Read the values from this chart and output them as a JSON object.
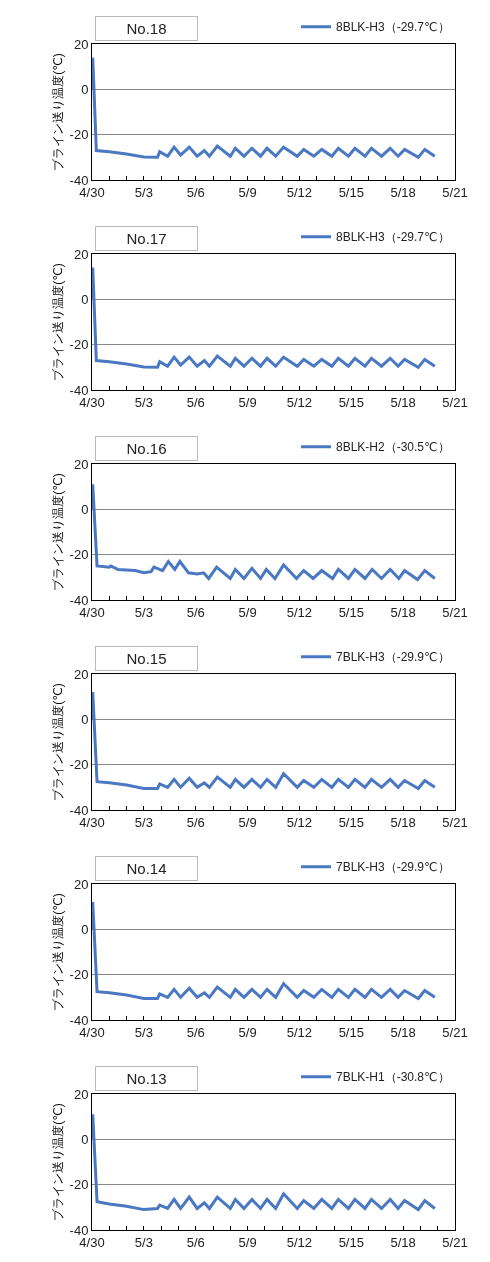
{
  "chart_data": [
    {
      "type": "line",
      "title": "No.18",
      "ylabel": "ブライン送り温度(℃)",
      "xlim": [
        "--04-30",
        "--05-21"
      ],
      "ylim": [
        -40,
        20
      ],
      "yticks": [
        -40,
        -20,
        0,
        20
      ],
      "grid": "y",
      "legend": "top right",
      "marker": "none",
      "line_style": "solid",
      "xticks": [
        {
          "value": "--04-30",
          "label": "4/30"
        },
        {
          "value": "--05-01",
          "label": null
        },
        {
          "value": "--05-02",
          "label": null
        },
        {
          "value": "--05-03",
          "label": "5/3"
        },
        {
          "value": "--05-04",
          "label": null
        },
        {
          "value": "--05-05",
          "label": null
        },
        {
          "value": "--05-06",
          "label": "5/6"
        },
        {
          "value": "--05-07",
          "label": null
        },
        {
          "value": "--05-08",
          "label": null
        },
        {
          "value": "--05-09",
          "label": "5/9"
        },
        {
          "value": "--05-10",
          "label": null
        },
        {
          "value": "--05-11",
          "label": null
        },
        {
          "value": "--05-12",
          "label": "5/12"
        },
        {
          "value": "--05-13",
          "label": null
        },
        {
          "value": "--05-14",
          "label": null
        },
        {
          "value": "--05-15",
          "label": "5/15"
        },
        {
          "value": "--05-16",
          "label": null
        },
        {
          "value": "--05-17",
          "label": null
        },
        {
          "value": "--05-18",
          "label": "5/18"
        },
        {
          "value": "--05-19",
          "label": null
        },
        {
          "value": "--05-20",
          "label": null
        },
        {
          "value": "--05-21",
          "label": "5/21"
        }
      ],
      "x": [
        "--04-30T00:00",
        "--04-30T01:00",
        "--04-30T06:00",
        "--05-01T00:00",
        "--05-02T00:00",
        "--05-03T00:00",
        "--05-03T19:00",
        "--05-03T22:00",
        "--05-04T09:00",
        "--05-04T18:00",
        "--05-05T03:00",
        "--05-05T15:00",
        "--05-06T02:00",
        "--05-06T12:00",
        "--05-06T19:00",
        "--05-07T06:00",
        "--05-08T00:00",
        "--05-08T07:00",
        "--05-08T19:00",
        "--05-09T06:00",
        "--05-09T18:00",
        "--05-10T03:00",
        "--05-10T15:00",
        "--05-11T02:00",
        "--05-11T21:00",
        "--05-12T06:00",
        "--05-12T20:00",
        "--05-13T07:00",
        "--05-13T21:00",
        "--05-14T06:00",
        "--05-14T20:00",
        "--05-15T05:00",
        "--05-15T19:00",
        "--05-16T04:00",
        "--05-16T18:00",
        "--05-17T06:00",
        "--05-17T17:00",
        "--05-18T02:00",
        "--05-18T21:00",
        "--05-19T06:00",
        "--05-19T20:00"
      ],
      "series": [
        {
          "name": "8BLK-H3（-29.7℃）",
          "color": "#4a78c2",
          "values": [
            0,
            14,
            -27,
            -27.5,
            -28.5,
            -29.8,
            -30,
            -27.5,
            -29.5,
            -25.5,
            -29,
            -25.5,
            -29.5,
            -27,
            -29.5,
            -25,
            -29.5,
            -26,
            -29.5,
            -26,
            -29.5,
            -26,
            -29.5,
            -25.5,
            -29.5,
            -26.5,
            -29.5,
            -26.5,
            -29.5,
            -26,
            -29.5,
            -26,
            -29.5,
            -26,
            -29.5,
            -26,
            -29.5,
            -26.5,
            -30,
            -26.5,
            -29.5
          ]
        }
      ]
    },
    {
      "type": "line",
      "title": "No.17",
      "ylabel": "ブライン送り温度(℃)",
      "xlim": [
        "--04-30",
        "--05-21"
      ],
      "ylim": [
        -40,
        20
      ],
      "yticks": [
        -40,
        -20,
        0,
        20
      ],
      "grid": "y",
      "legend": "top right",
      "marker": "none",
      "line_style": "solid",
      "xticks": [
        {
          "value": "--04-30",
          "label": "4/30"
        },
        {
          "value": "--05-01",
          "label": null
        },
        {
          "value": "--05-02",
          "label": null
        },
        {
          "value": "--05-03",
          "label": "5/3"
        },
        {
          "value": "--05-04",
          "label": null
        },
        {
          "value": "--05-05",
          "label": null
        },
        {
          "value": "--05-06",
          "label": "5/6"
        },
        {
          "value": "--05-07",
          "label": null
        },
        {
          "value": "--05-08",
          "label": null
        },
        {
          "value": "--05-09",
          "label": "5/9"
        },
        {
          "value": "--05-10",
          "label": null
        },
        {
          "value": "--05-11",
          "label": null
        },
        {
          "value": "--05-12",
          "label": "5/12"
        },
        {
          "value": "--05-13",
          "label": null
        },
        {
          "value": "--05-14",
          "label": null
        },
        {
          "value": "--05-15",
          "label": "5/15"
        },
        {
          "value": "--05-16",
          "label": null
        },
        {
          "value": "--05-17",
          "label": null
        },
        {
          "value": "--05-18",
          "label": "5/18"
        },
        {
          "value": "--05-19",
          "label": null
        },
        {
          "value": "--05-20",
          "label": null
        },
        {
          "value": "--05-21",
          "label": "5/21"
        }
      ],
      "x": [
        "--04-30T00:00",
        "--04-30T01:00",
        "--04-30T06:00",
        "--05-01T00:00",
        "--05-02T00:00",
        "--05-03T00:00",
        "--05-03T19:00",
        "--05-03T22:00",
        "--05-04T09:00",
        "--05-04T18:00",
        "--05-05T03:00",
        "--05-05T15:00",
        "--05-06T02:00",
        "--05-06T12:00",
        "--05-06T19:00",
        "--05-07T06:00",
        "--05-08T00:00",
        "--05-08T07:00",
        "--05-08T19:00",
        "--05-09T06:00",
        "--05-09T18:00",
        "--05-10T03:00",
        "--05-10T15:00",
        "--05-11T02:00",
        "--05-11T21:00",
        "--05-12T06:00",
        "--05-12T20:00",
        "--05-13T07:00",
        "--05-13T21:00",
        "--05-14T06:00",
        "--05-14T20:00",
        "--05-15T05:00",
        "--05-15T19:00",
        "--05-16T04:00",
        "--05-16T18:00",
        "--05-17T06:00",
        "--05-17T17:00",
        "--05-18T02:00",
        "--05-18T21:00",
        "--05-19T06:00",
        "--05-19T20:00"
      ],
      "series": [
        {
          "name": "8BLK-H3（-29.7℃）",
          "color": "#4a78c2",
          "values": [
            0,
            14,
            -27,
            -27.5,
            -28.5,
            -29.8,
            -30,
            -27.5,
            -29.5,
            -25.5,
            -29,
            -25.5,
            -29.5,
            -27,
            -29.5,
            -25,
            -29.5,
            -26,
            -29.5,
            -26,
            -29.5,
            -26,
            -29.5,
            -25.5,
            -29.5,
            -26.5,
            -29.5,
            -26.5,
            -29.5,
            -26,
            -29.5,
            -26,
            -29.5,
            -26,
            -29.5,
            -26,
            -29.5,
            -26.5,
            -30,
            -26.5,
            -29.5
          ]
        }
      ]
    },
    {
      "type": "line",
      "title": "No.16",
      "ylabel": "ブライン送り温度(℃)",
      "xlim": [
        "--04-30",
        "--05-21"
      ],
      "ylim": [
        -40,
        20
      ],
      "yticks": [
        -40,
        -20,
        0,
        20
      ],
      "grid": "y",
      "legend": "top right",
      "marker": "none",
      "line_style": "solid",
      "xticks": [
        {
          "value": "--04-30",
          "label": "4/30"
        },
        {
          "value": "--05-01",
          "label": null
        },
        {
          "value": "--05-02",
          "label": null
        },
        {
          "value": "--05-03",
          "label": "5/3"
        },
        {
          "value": "--05-04",
          "label": null
        },
        {
          "value": "--05-05",
          "label": null
        },
        {
          "value": "--05-06",
          "label": "5/6"
        },
        {
          "value": "--05-07",
          "label": null
        },
        {
          "value": "--05-08",
          "label": null
        },
        {
          "value": "--05-09",
          "label": "5/9"
        },
        {
          "value": "--05-10",
          "label": null
        },
        {
          "value": "--05-11",
          "label": null
        },
        {
          "value": "--05-12",
          "label": "5/12"
        },
        {
          "value": "--05-13",
          "label": null
        },
        {
          "value": "--05-14",
          "label": null
        },
        {
          "value": "--05-15",
          "label": "5/15"
        },
        {
          "value": "--05-16",
          "label": null
        },
        {
          "value": "--05-17",
          "label": null
        },
        {
          "value": "--05-18",
          "label": "5/18"
        },
        {
          "value": "--05-19",
          "label": null
        },
        {
          "value": "--05-20",
          "label": null
        },
        {
          "value": "--05-21",
          "label": "5/21"
        }
      ],
      "x": [
        "--04-30T00:00",
        "--04-30T01:00",
        "--04-30T07:00",
        "--05-01T00:00",
        "--05-01T02:00",
        "--05-01T12:00",
        "--05-02T12:00",
        "--05-03T00:00",
        "--05-03T10:00",
        "--05-03T14:00",
        "--05-04T02:00",
        "--05-04T10:00",
        "--05-04T19:00",
        "--05-05T02:00",
        "--05-05T14:00",
        "--05-06T02:00",
        "--05-06T11:00",
        "--05-06T18:00",
        "--05-07T05:00",
        "--05-08T00:00",
        "--05-08T07:00",
        "--05-08T19:00",
        "--05-09T06:00",
        "--05-09T18:00",
        "--05-10T02:00",
        "--05-10T14:00",
        "--05-11T02:00",
        "--05-11T20:00",
        "--05-12T06:00",
        "--05-12T19:00",
        "--05-13T07:00",
        "--05-13T22:00",
        "--05-14T06:00",
        "--05-14T20:00",
        "--05-15T05:00",
        "--05-15T19:00",
        "--05-16T05:00",
        "--05-16T18:00",
        "--05-17T06:00",
        "--05-17T18:00",
        "--05-18T02:00",
        "--05-18T20:00",
        "--05-19T06:00",
        "--05-19T20:00"
      ],
      "series": [
        {
          "name": "8BLK-H2（-30.5℃）",
          "color": "#4a78c2",
          "values": [
            0,
            11,
            -25,
            -25.5,
            -25,
            -26.5,
            -27,
            -28,
            -27.5,
            -25.5,
            -27,
            -23,
            -26.5,
            -23,
            -28,
            -28.5,
            -28,
            -30.5,
            -25.5,
            -30.5,
            -26.5,
            -30.5,
            -26,
            -30.5,
            -26.5,
            -30.5,
            -24.5,
            -30.5,
            -27,
            -30.5,
            -27,
            -30.5,
            -26.5,
            -30.5,
            -26.5,
            -30.5,
            -26.5,
            -30.5,
            -26.5,
            -30.5,
            -27,
            -31,
            -27,
            -30.5
          ]
        }
      ]
    },
    {
      "type": "line",
      "title": "No.15",
      "ylabel": "ブライン送り温度(℃)",
      "xlim": [
        "--04-30",
        "--05-21"
      ],
      "ylim": [
        -40,
        20
      ],
      "yticks": [
        -40,
        -20,
        0,
        20
      ],
      "grid": "y",
      "legend": "top right",
      "marker": "none",
      "line_style": "solid",
      "xticks": [
        {
          "value": "--04-30",
          "label": "4/30"
        },
        {
          "value": "--05-01",
          "label": null
        },
        {
          "value": "--05-02",
          "label": null
        },
        {
          "value": "--05-03",
          "label": "5/3"
        },
        {
          "value": "--05-04",
          "label": null
        },
        {
          "value": "--05-05",
          "label": null
        },
        {
          "value": "--05-06",
          "label": "5/6"
        },
        {
          "value": "--05-07",
          "label": null
        },
        {
          "value": "--05-08",
          "label": null
        },
        {
          "value": "--05-09",
          "label": "5/9"
        },
        {
          "value": "--05-10",
          "label": null
        },
        {
          "value": "--05-11",
          "label": null
        },
        {
          "value": "--05-12",
          "label": "5/12"
        },
        {
          "value": "--05-13",
          "label": null
        },
        {
          "value": "--05-14",
          "label": null
        },
        {
          "value": "--05-15",
          "label": "5/15"
        },
        {
          "value": "--05-16",
          "label": null
        },
        {
          "value": "--05-17",
          "label": null
        },
        {
          "value": "--05-18",
          "label": "5/18"
        },
        {
          "value": "--05-19",
          "label": null
        },
        {
          "value": "--05-20",
          "label": null
        },
        {
          "value": "--05-21",
          "label": "5/21"
        }
      ],
      "x": [
        "--04-30T00:00",
        "--04-30T01:00",
        "--04-30T07:00",
        "--05-01T00:00",
        "--05-02T00:00",
        "--05-03T00:00",
        "--05-03T19:00",
        "--05-03T22:00",
        "--05-04T09:00",
        "--05-04T18:00",
        "--05-05T03:00",
        "--05-05T15:00",
        "--05-06T02:00",
        "--05-06T12:00",
        "--05-06T19:00",
        "--05-07T06:00",
        "--05-08T00:00",
        "--05-08T07:00",
        "--05-08T19:00",
        "--05-09T06:00",
        "--05-09T18:00",
        "--05-10T03:00",
        "--05-10T15:00",
        "--05-11T02:00",
        "--05-11T21:00",
        "--05-12T06:00",
        "--05-12T20:00",
        "--05-13T07:00",
        "--05-13T21:00",
        "--05-14T06:00",
        "--05-14T20:00",
        "--05-15T05:00",
        "--05-15T19:00",
        "--05-16T04:00",
        "--05-16T18:00",
        "--05-17T06:00",
        "--05-17T17:00",
        "--05-18T02:00",
        "--05-18T21:00",
        "--05-19T06:00",
        "--05-19T20:00"
      ],
      "series": [
        {
          "name": "7BLK-H3（-29.9℃）",
          "color": "#4a78c2",
          "values": [
            0,
            12,
            -27.5,
            -28,
            -29,
            -30.5,
            -30.5,
            -28.5,
            -30,
            -26.5,
            -30,
            -26,
            -30,
            -28,
            -30,
            -25.5,
            -30,
            -26.5,
            -30,
            -26.5,
            -30,
            -26.5,
            -30,
            -24,
            -30,
            -27,
            -30,
            -26.5,
            -30,
            -26.5,
            -30,
            -26.5,
            -30,
            -26.5,
            -30,
            -26.5,
            -30,
            -27,
            -30.5,
            -27,
            -30
          ]
        }
      ]
    },
    {
      "type": "line",
      "title": "No.14",
      "ylabel": "ブライン送り温度(℃)",
      "xlim": [
        "--04-30",
        "--05-21"
      ],
      "ylim": [
        -40,
        20
      ],
      "yticks": [
        -40,
        -20,
        0,
        20
      ],
      "grid": "y",
      "legend": "top right",
      "marker": "none",
      "line_style": "solid",
      "xticks": [
        {
          "value": "--04-30",
          "label": "4/30"
        },
        {
          "value": "--05-01",
          "label": null
        },
        {
          "value": "--05-02",
          "label": null
        },
        {
          "value": "--05-03",
          "label": "5/3"
        },
        {
          "value": "--05-04",
          "label": null
        },
        {
          "value": "--05-05",
          "label": null
        },
        {
          "value": "--05-06",
          "label": "5/6"
        },
        {
          "value": "--05-07",
          "label": null
        },
        {
          "value": "--05-08",
          "label": null
        },
        {
          "value": "--05-09",
          "label": "5/9"
        },
        {
          "value": "--05-10",
          "label": null
        },
        {
          "value": "--05-11",
          "label": null
        },
        {
          "value": "--05-12",
          "label": "5/12"
        },
        {
          "value": "--05-13",
          "label": null
        },
        {
          "value": "--05-14",
          "label": null
        },
        {
          "value": "--05-15",
          "label": "5/15"
        },
        {
          "value": "--05-16",
          "label": null
        },
        {
          "value": "--05-17",
          "label": null
        },
        {
          "value": "--05-18",
          "label": "5/18"
        },
        {
          "value": "--05-19",
          "label": null
        },
        {
          "value": "--05-20",
          "label": null
        },
        {
          "value": "--05-21",
          "label": "5/21"
        }
      ],
      "x": [
        "--04-30T00:00",
        "--04-30T01:00",
        "--04-30T07:00",
        "--05-01T00:00",
        "--05-02T00:00",
        "--05-03T00:00",
        "--05-03T19:00",
        "--05-03T22:00",
        "--05-04T09:00",
        "--05-04T18:00",
        "--05-05T03:00",
        "--05-05T15:00",
        "--05-06T02:00",
        "--05-06T12:00",
        "--05-06T19:00",
        "--05-07T06:00",
        "--05-08T00:00",
        "--05-08T07:00",
        "--05-08T19:00",
        "--05-09T06:00",
        "--05-09T18:00",
        "--05-10T03:00",
        "--05-10T15:00",
        "--05-11T02:00",
        "--05-11T21:00",
        "--05-12T06:00",
        "--05-12T20:00",
        "--05-13T07:00",
        "--05-13T21:00",
        "--05-14T06:00",
        "--05-14T20:00",
        "--05-15T05:00",
        "--05-15T19:00",
        "--05-16T04:00",
        "--05-16T18:00",
        "--05-17T06:00",
        "--05-17T17:00",
        "--05-18T02:00",
        "--05-18T21:00",
        "--05-19T06:00",
        "--05-19T20:00"
      ],
      "series": [
        {
          "name": "7BLK-H3（-29.9℃）",
          "color": "#4a78c2",
          "values": [
            0,
            12,
            -27.5,
            -28,
            -29,
            -30.5,
            -30.5,
            -28.5,
            -30,
            -26.5,
            -30,
            -26,
            -30,
            -28,
            -30,
            -25.5,
            -30,
            -26.5,
            -30,
            -26.5,
            -30,
            -26.5,
            -30,
            -24,
            -30,
            -27,
            -30,
            -26.5,
            -30,
            -26.5,
            -30,
            -26.5,
            -30,
            -26.5,
            -30,
            -26.5,
            -30,
            -27,
            -30.5,
            -27,
            -30
          ]
        }
      ]
    },
    {
      "type": "line",
      "title": "No.13",
      "ylabel": "ブライン送り温度(℃)",
      "xlim": [
        "--04-30",
        "--05-21"
      ],
      "ylim": [
        -40,
        20
      ],
      "yticks": [
        -40,
        -20,
        0,
        20
      ],
      "grid": "y",
      "legend": "top right",
      "marker": "none",
      "line_style": "solid",
      "xticks": [
        {
          "value": "--04-30",
          "label": "4/30"
        },
        {
          "value": "--05-01",
          "label": null
        },
        {
          "value": "--05-02",
          "label": null
        },
        {
          "value": "--05-03",
          "label": "5/3"
        },
        {
          "value": "--05-04",
          "label": null
        },
        {
          "value": "--05-05",
          "label": null
        },
        {
          "value": "--05-06",
          "label": "5/6"
        },
        {
          "value": "--05-07",
          "label": null
        },
        {
          "value": "--05-08",
          "label": null
        },
        {
          "value": "--05-09",
          "label": "5/9"
        },
        {
          "value": "--05-10",
          "label": null
        },
        {
          "value": "--05-11",
          "label": null
        },
        {
          "value": "--05-12",
          "label": "5/12"
        },
        {
          "value": "--05-13",
          "label": null
        },
        {
          "value": "--05-14",
          "label": null
        },
        {
          "value": "--05-15",
          "label": "5/15"
        },
        {
          "value": "--05-16",
          "label": null
        },
        {
          "value": "--05-17",
          "label": null
        },
        {
          "value": "--05-18",
          "label": "5/18"
        },
        {
          "value": "--05-19",
          "label": null
        },
        {
          "value": "--05-20",
          "label": null
        },
        {
          "value": "--05-21",
          "label": "5/21"
        }
      ],
      "x": [
        "--04-30T00:00",
        "--04-30T01:00",
        "--04-30T07:00",
        "--05-01T00:00",
        "--05-02T00:00",
        "--05-03T00:00",
        "--05-03T19:00",
        "--05-03T22:00",
        "--05-04T09:00",
        "--05-04T18:00",
        "--05-05T03:00",
        "--05-05T15:00",
        "--05-06T02:00",
        "--05-06T12:00",
        "--05-06T19:00",
        "--05-07T06:00",
        "--05-08T00:00",
        "--05-08T07:00",
        "--05-08T19:00",
        "--05-09T06:00",
        "--05-09T18:00",
        "--05-10T03:00",
        "--05-10T15:00",
        "--05-11T02:00",
        "--05-11T21:00",
        "--05-12T06:00",
        "--05-12T20:00",
        "--05-13T07:00",
        "--05-13T21:00",
        "--05-14T06:00",
        "--05-14T20:00",
        "--05-15T05:00",
        "--05-15T19:00",
        "--05-16T04:00",
        "--05-16T18:00",
        "--05-17T06:00",
        "--05-17T17:00",
        "--05-18T02:00",
        "--05-18T21:00",
        "--05-19T06:00",
        "--05-19T20:00"
      ],
      "series": [
        {
          "name": "7BLK-H1（-30.8℃）",
          "color": "#4a78c2",
          "values": [
            0,
            11,
            -27.5,
            -28.5,
            -29.5,
            -31,
            -30.5,
            -29,
            -30.5,
            -26.5,
            -30.5,
            -25.5,
            -30.5,
            -28,
            -30.5,
            -25.5,
            -30.5,
            -26.5,
            -30.5,
            -26.5,
            -30.5,
            -26.5,
            -30.5,
            -24,
            -30.5,
            -27,
            -30.5,
            -26.5,
            -30.5,
            -26.5,
            -30.5,
            -26.5,
            -30.5,
            -26.5,
            -30.5,
            -26.5,
            -30.5,
            -27,
            -31,
            -27,
            -30.5
          ]
        }
      ]
    }
  ]
}
